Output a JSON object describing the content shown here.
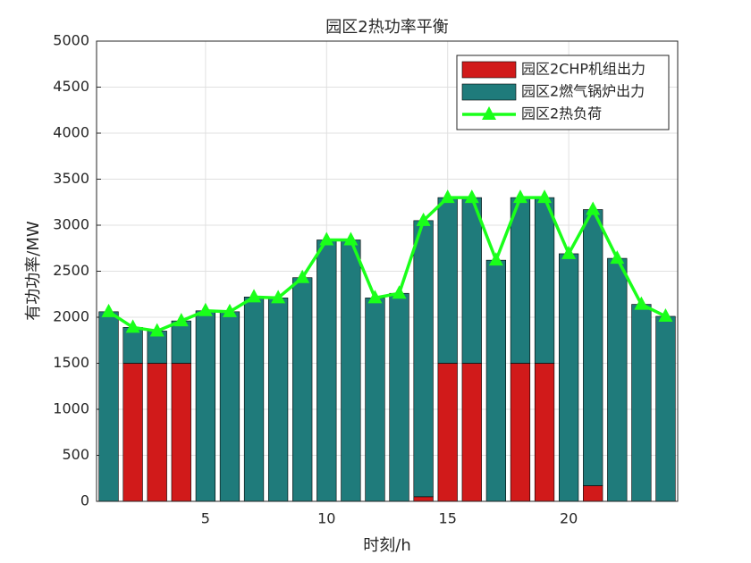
{
  "chart_data": {
    "type": "bar",
    "title": "园区2热功率平衡",
    "x_label": "时刻/h",
    "y_label": "有功功率/MW",
    "x": [
      1,
      2,
      3,
      4,
      5,
      6,
      7,
      8,
      9,
      10,
      11,
      12,
      13,
      14,
      15,
      16,
      17,
      18,
      19,
      20,
      21,
      22,
      23,
      24
    ],
    "series": [
      {
        "name": "园区2CHP机组出力",
        "color": "#d11a1a",
        "values": [
          0,
          1500,
          1500,
          1500,
          0,
          0,
          0,
          0,
          0,
          0,
          0,
          0,
          0,
          50,
          1500,
          1500,
          0,
          1500,
          1500,
          0,
          170,
          0,
          0,
          0
        ]
      },
      {
        "name": "园区2燃气锅炉出力",
        "color": "#1f7b7b",
        "values": [
          2060,
          390,
          350,
          460,
          2070,
          2060,
          2220,
          2210,
          2430,
          2840,
          2840,
          2210,
          2260,
          3000,
          1800,
          1800,
          2620,
          1800,
          1800,
          2690,
          3000,
          2640,
          2140,
          2010
        ]
      },
      {
        "name": "园区2热负荷",
        "color": "#1aff1a",
        "type": "line",
        "values": [
          2060,
          1890,
          1850,
          1960,
          2070,
          2060,
          2220,
          2210,
          2430,
          2840,
          2840,
          2210,
          2260,
          3050,
          3300,
          3300,
          2620,
          3300,
          3300,
          2690,
          3170,
          2640,
          2140,
          2010
        ]
      }
    ],
    "xlim": [
      0.5,
      24.5
    ],
    "xticks": [
      5,
      10,
      15,
      20
    ],
    "ylim": [
      0,
      5000
    ],
    "yticks": [
      0,
      500,
      1000,
      1500,
      2000,
      2500,
      3000,
      3500,
      4000,
      4500,
      5000
    ],
    "grid": true,
    "legend": "top-right"
  }
}
